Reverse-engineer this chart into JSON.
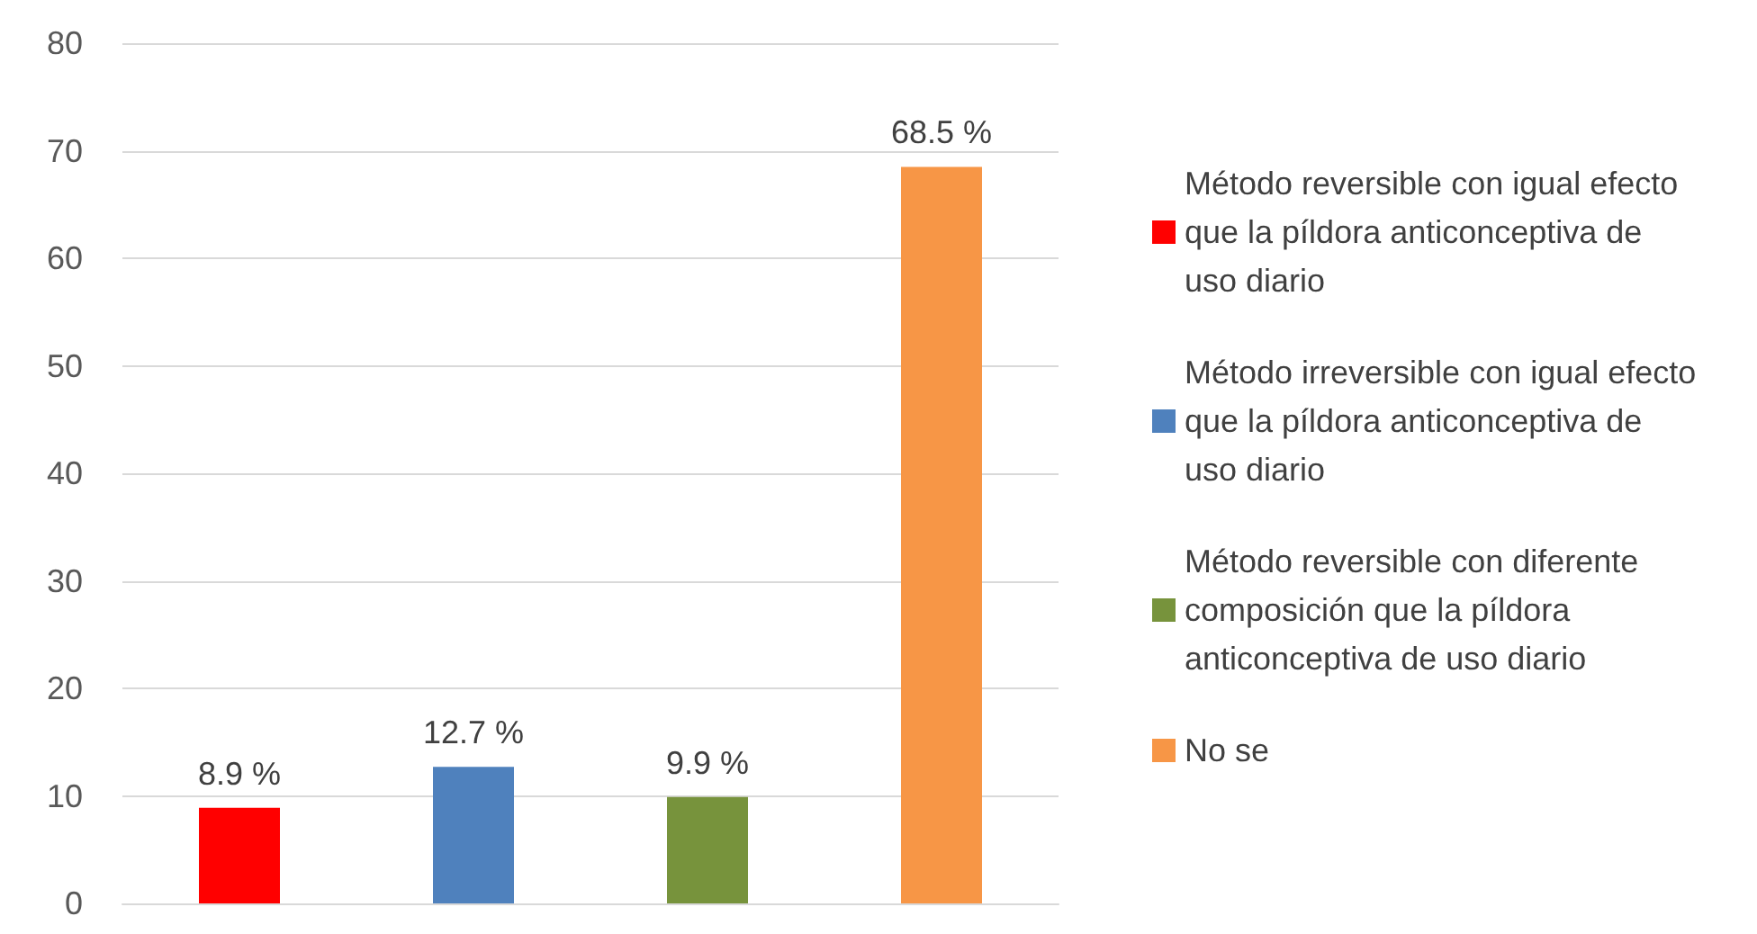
{
  "chart_data": {
    "type": "bar",
    "categories": [
      null,
      null,
      null,
      null
    ],
    "series": [
      {
        "name": "Método reversible con igual efecto que la píldora anticonceptiva de uso diario",
        "color": "#ff0000",
        "values": [
          8.9,
          null,
          null,
          null
        ],
        "value_labels": [
          "8.9 %",
          null,
          null,
          null
        ]
      },
      {
        "name": "Método irreversible con igual efecto que la píldora anticonceptiva de uso diario",
        "color": "#4f81bd",
        "values": [
          null,
          12.7,
          null,
          null
        ],
        "value_labels": [
          null,
          "12.7 %",
          null,
          null
        ]
      },
      {
        "name": "Método reversible con diferente composición que la píldora anticonceptiva de uso diario",
        "color": "#77933c",
        "values": [
          null,
          null,
          9.9,
          null
        ],
        "value_labels": [
          null,
          null,
          "9.9 %",
          null
        ]
      },
      {
        "name": "No se",
        "color": "#f79646",
        "values": [
          null,
          null,
          null,
          68.5
        ],
        "value_labels": [
          null,
          null,
          null,
          "68.5 %"
        ]
      }
    ],
    "ylim": [
      0,
      80
    ],
    "yticks": [
      0,
      10,
      20,
      30,
      40,
      50,
      60,
      70,
      80
    ],
    "grid": "y",
    "legend": "right"
  }
}
